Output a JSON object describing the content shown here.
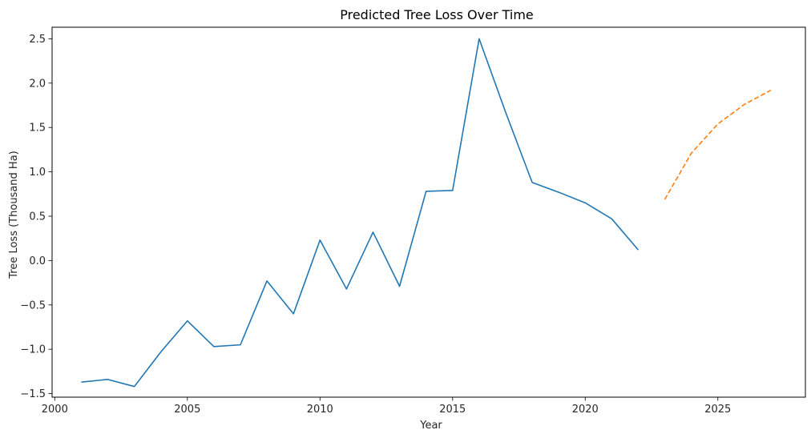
{
  "chart_data": {
    "type": "line",
    "title": "Predicted Tree Loss Over Time",
    "xlabel": "Year",
    "ylabel": "Tree Loss (Thousand Ha)",
    "xlim": [
      1999.9,
      2028.3
    ],
    "ylim": [
      -1.54,
      2.63
    ],
    "x_ticks": [
      2000,
      2005,
      2010,
      2015,
      2020,
      2025
    ],
    "y_ticks": [
      -1.5,
      -1.0,
      -0.5,
      0.0,
      0.5,
      1.0,
      1.5,
      2.0,
      2.5
    ],
    "y_tick_labels": [
      "−1.5",
      "−1.0",
      "−0.5",
      "0.0",
      "0.5",
      "1.0",
      "1.5",
      "2.0",
      "2.5"
    ],
    "grid": false,
    "series": [
      {
        "color": "#1f77b4",
        "style": "solid",
        "x": [
          2001,
          2002,
          2003,
          2004,
          2005,
          2006,
          2007,
          2008,
          2009,
          2010,
          2011,
          2012,
          2013,
          2014,
          2015,
          2016,
          2017,
          2018,
          2019,
          2020,
          2021,
          2022
        ],
        "y": [
          -1.37,
          -1.34,
          -1.42,
          -1.03,
          -0.68,
          -0.97,
          -0.95,
          -0.23,
          -0.6,
          0.23,
          -0.32,
          0.32,
          -0.29,
          0.78,
          0.79,
          2.5,
          1.67,
          0.88,
          0.77,
          0.65,
          0.47,
          0.12
        ]
      },
      {
        "color": "#ff7f0e",
        "style": "dashed",
        "x": [
          2023,
          2024,
          2025,
          2026,
          2027
        ],
        "y": [
          0.69,
          1.21,
          1.54,
          1.76,
          1.92
        ]
      }
    ]
  }
}
